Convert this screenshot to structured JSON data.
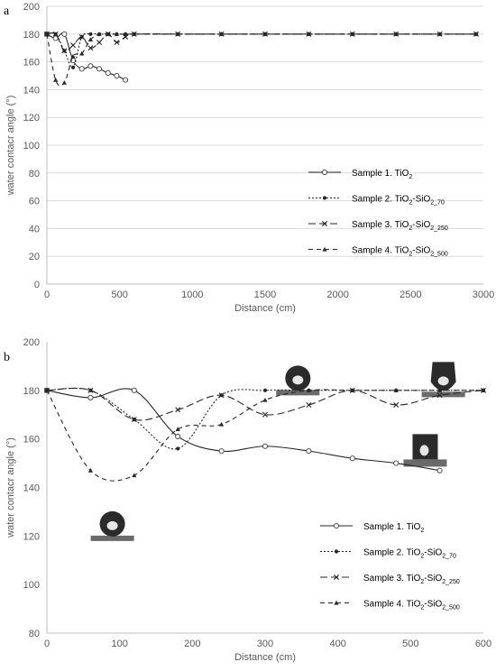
{
  "chart_data": [
    {
      "panel": "a",
      "type": "line",
      "xlabel": "Distance (cm)",
      "ylabel": "water contacr angle (°)",
      "xlim": [
        0,
        3000
      ],
      "ylim": [
        0,
        200
      ],
      "xticks": [
        0,
        500,
        1000,
        1500,
        2000,
        2500,
        3000
      ],
      "yticks": [
        0,
        20,
        40,
        60,
        80,
        100,
        120,
        140,
        160,
        180,
        200
      ],
      "grid": "horizontal",
      "legend_position": "right-middle",
      "series": [
        {
          "name": "Sample 1. TiO",
          "sub": "2",
          "suffix": "",
          "dash": "",
          "marker": "circle-open",
          "x": [
            0,
            60,
            120,
            180,
            240,
            300,
            360,
            420,
            480,
            540
          ],
          "y": [
            180,
            177,
            180,
            161,
            155,
            157,
            155,
            152,
            150,
            147
          ]
        },
        {
          "name": "Sample 2. TiO",
          "sub": "2",
          "suffix": "-SiO",
          "sub2": "2_70",
          "dash": "2,2",
          "marker": "circle-filled",
          "x": [
            0,
            60,
            120,
            180,
            240,
            300,
            360,
            420,
            480,
            540,
            600,
            900,
            1200,
            1500,
            1800,
            2100,
            2400,
            2700,
            2950
          ],
          "y": [
            180,
            180,
            168,
            156,
            178,
            180,
            180,
            180,
            180,
            180,
            180,
            180,
            180,
            180,
            180,
            180,
            180,
            180,
            180
          ]
        },
        {
          "name": "Sample 3. TiO",
          "sub": "2",
          "suffix": "-SiO",
          "sub2": "2_250",
          "dash": "8,4",
          "marker": "x",
          "x": [
            0,
            60,
            120,
            180,
            240,
            300,
            360,
            420,
            480,
            540,
            600,
            900,
            1200,
            1500,
            1800,
            2100,
            2400,
            2700,
            2950
          ],
          "y": [
            180,
            180,
            168,
            172,
            178,
            170,
            174,
            180,
            174,
            178,
            180,
            180,
            180,
            180,
            180,
            180,
            180,
            180,
            180
          ]
        },
        {
          "name": "Sample 4. TiO",
          "sub": "2",
          "suffix": "-SiO",
          "sub2": "2_500",
          "dash": "5,4",
          "marker": "triangle",
          "x": [
            0,
            60,
            120,
            180,
            240,
            300,
            360,
            420,
            480,
            540,
            600,
            900,
            1200,
            1500,
            1800,
            2100,
            2400,
            2700,
            2950
          ],
          "y": [
            180,
            147,
            145,
            164,
            166,
            176,
            180,
            180,
            180,
            180,
            180,
            180,
            180,
            180,
            180,
            180,
            180,
            180,
            180
          ]
        }
      ]
    },
    {
      "panel": "b",
      "type": "line",
      "xlabel": "Distance (cm)",
      "ylabel": "water contacr angle (°)",
      "xlim": [
        0,
        600
      ],
      "ylim": [
        80,
        200
      ],
      "xticks": [
        0,
        100,
        200,
        300,
        400,
        500,
        600
      ],
      "yticks": [
        80,
        100,
        120,
        140,
        160,
        180,
        200
      ],
      "grid": "none",
      "legend_position": "bottom-right",
      "series": [
        {
          "name": "Sample 1. TiO",
          "sub": "2",
          "suffix": "",
          "dash": "",
          "marker": "circle-open",
          "x": [
            0,
            60,
            120,
            180,
            240,
            300,
            360,
            420,
            480,
            540
          ],
          "y": [
            180,
            177,
            180,
            161,
            155,
            157,
            155,
            152,
            150,
            147
          ]
        },
        {
          "name": "Sample 2. TiO",
          "sub": "2",
          "suffix": "-SiO",
          "sub2": "2_70",
          "dash": "2,2",
          "marker": "circle-filled",
          "x": [
            0,
            60,
            120,
            180,
            240,
            300,
            360,
            420,
            480,
            540,
            600
          ],
          "y": [
            180,
            180,
            168,
            156,
            178,
            180,
            180,
            180,
            180,
            180,
            180
          ]
        },
        {
          "name": "Sample 3. TiO",
          "sub": "2",
          "suffix": "-SiO",
          "sub2": "2_250",
          "dash": "8,4",
          "marker": "x",
          "x": [
            0,
            60,
            120,
            180,
            240,
            300,
            360,
            420,
            480,
            540,
            600
          ],
          "y": [
            180,
            180,
            168,
            172,
            178,
            170,
            174,
            180,
            174,
            178,
            180
          ]
        },
        {
          "name": "Sample 4. TiO",
          "sub": "2",
          "suffix": "-SiO",
          "sub2": "2_500",
          "dash": "5,4",
          "marker": "triangle",
          "x": [
            0,
            60,
            120,
            180,
            240,
            300,
            360,
            420,
            480,
            540,
            600
          ],
          "y": [
            180,
            147,
            145,
            164,
            166,
            176,
            180,
            180,
            180,
            180,
            180
          ]
        }
      ],
      "droplet_photos": [
        {
          "x": 90,
          "y": 125,
          "kind": "sphere"
        },
        {
          "x": 345,
          "y": 185,
          "kind": "sphere"
        },
        {
          "x": 545,
          "y": 185,
          "kind": "tall"
        },
        {
          "x": 520,
          "y": 156,
          "kind": "sag"
        }
      ]
    }
  ]
}
